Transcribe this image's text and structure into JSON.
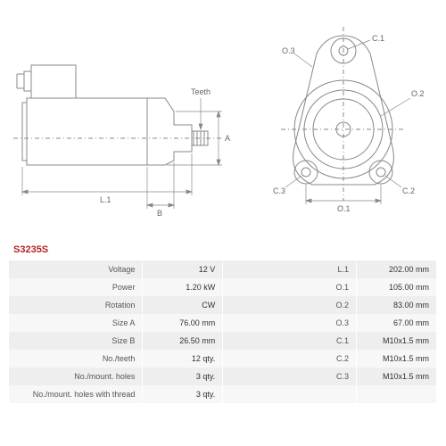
{
  "part_number": "S3235S",
  "part_color": "#b22222",
  "diagram": {
    "stroke_color": "#888888",
    "dim_color": "#666666",
    "labels": {
      "teeth": "Teeth",
      "A": "A",
      "B": "B",
      "L1": "L.1",
      "O1": "O.1",
      "O2": "O.2",
      "O3": "O.3",
      "C1": "C.1",
      "C2": "C.2",
      "C3": "C.3"
    }
  },
  "table": {
    "row_odd_bg": "#eeeeee",
    "row_even_bg": "#f7f7f7",
    "rows": [
      {
        "l1": "Voltage",
        "v1": "12 V",
        "l2": "L.1",
        "v2": "202.00 mm"
      },
      {
        "l1": "Power",
        "v1": "1.20 kW",
        "l2": "O.1",
        "v2": "105.00 mm"
      },
      {
        "l1": "Rotation",
        "v1": "CW",
        "l2": "O.2",
        "v2": "83.00 mm"
      },
      {
        "l1": "Size A",
        "v1": "76.00 mm",
        "l2": "O.3",
        "v2": "67.00 mm"
      },
      {
        "l1": "Size B",
        "v1": "26.50 mm",
        "l2": "C.1",
        "v2": "M10x1.5 mm"
      },
      {
        "l1": "No./teeth",
        "v1": "12 qty.",
        "l2": "C.2",
        "v2": "M10x1.5 mm"
      },
      {
        "l1": "No./mount. holes",
        "v1": "3 qty.",
        "l2": "C.3",
        "v2": "M10x1.5 mm"
      },
      {
        "l1": "No./mount. holes with thread",
        "v1": "3 qty.",
        "l2": "",
        "v2": ""
      }
    ]
  }
}
